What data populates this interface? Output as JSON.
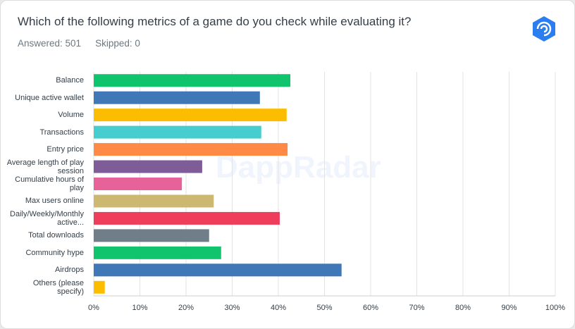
{
  "header": {
    "title": "Which of the following metrics of a game do you check while evaluating it?",
    "answered": "Answered: 501",
    "skipped": "Skipped: 0"
  },
  "watermark": "DappRadar",
  "chart_data": {
    "type": "bar",
    "orientation": "horizontal",
    "categories": [
      "Balance",
      "Unique active wallet",
      "Volume",
      "Transactions",
      "Entry price",
      "Average length of play session",
      "Cumulative hours of play",
      "Max users online",
      "Daily/Weekly/Monthly active...",
      "Total downloads",
      "Community hype",
      "Airdrops",
      "Others (please specify)"
    ],
    "values": [
      42.6,
      36.0,
      41.8,
      36.3,
      42.0,
      23.5,
      19.1,
      26.0,
      40.3,
      25.0,
      27.6,
      53.7,
      2.4
    ],
    "colors": [
      "#10c46e",
      "#3f77b7",
      "#fcbd00",
      "#46cdcd",
      "#ff8a45",
      "#7d5c98",
      "#e8629a",
      "#cdb871",
      "#ee3e5c",
      "#6f7e88",
      "#10c46e",
      "#3f77b7",
      "#fcbd00"
    ],
    "xlim": [
      0,
      100
    ],
    "xticks": [
      {
        "value": 0,
        "label": "0%"
      },
      {
        "value": 10,
        "label": "10%"
      },
      {
        "value": 20,
        "label": "20%"
      },
      {
        "value": 30,
        "label": "30%"
      },
      {
        "value": 40,
        "label": "40%"
      },
      {
        "value": 50,
        "label": "50%"
      },
      {
        "value": 60,
        "label": "60%"
      },
      {
        "value": 70,
        "label": "70%"
      },
      {
        "value": 80,
        "label": "80%"
      },
      {
        "value": 90,
        "label": "90%"
      },
      {
        "value": 100,
        "label": "100%"
      }
    ],
    "grid": true
  }
}
